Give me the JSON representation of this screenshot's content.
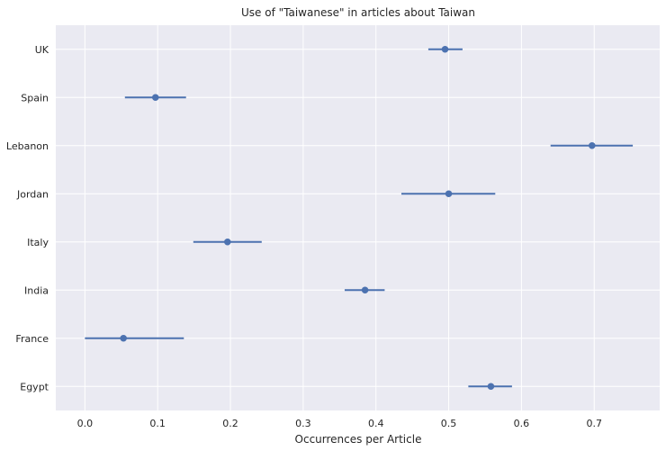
{
  "chart_data": {
    "type": "scatter",
    "title": "Use of \"Taiwanese\" in articles about Taiwan",
    "xlabel": "Occurrences per Article",
    "ylabel": "",
    "xlim": [
      -0.04,
      0.79
    ],
    "xticks": [
      0.0,
      0.1,
      0.2,
      0.3,
      0.4,
      0.5,
      0.6,
      0.7
    ],
    "xtick_labels": [
      "0.0",
      "0.1",
      "0.2",
      "0.3",
      "0.4",
      "0.5",
      "0.6",
      "0.7"
    ],
    "categories": [
      "UK",
      "Spain",
      "Lebanon",
      "Jordan",
      "Italy",
      "India",
      "France",
      "Egypt"
    ],
    "series": [
      {
        "values": [
          0.495,
          0.097,
          0.697,
          0.5,
          0.196,
          0.385,
          0.053,
          0.558
        ],
        "ci_low": [
          0.472,
          0.055,
          0.64,
          0.435,
          0.149,
          0.357,
          0.0,
          0.527
        ],
        "ci_high": [
          0.519,
          0.139,
          0.753,
          0.564,
          0.243,
          0.412,
          0.136,
          0.587
        ]
      }
    ],
    "grid": true,
    "colors": {
      "series": "#4c72b0",
      "background": "#eaeaf2",
      "grid": "#ffffff",
      "text": "#262626"
    }
  }
}
